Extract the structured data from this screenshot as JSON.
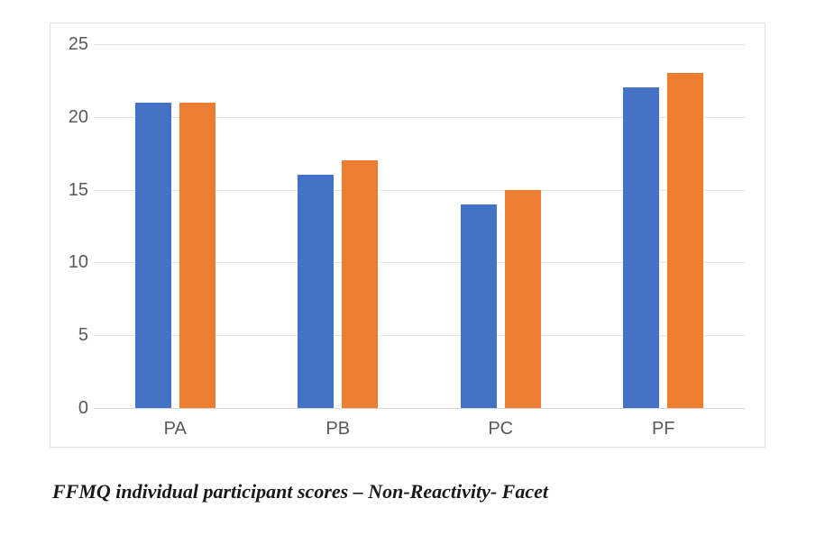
{
  "caption": "FFMQ individual participant scores – Non-Reactivity- Facet",
  "chart_data": {
    "type": "bar",
    "categories": [
      "PA",
      "PB",
      "PC",
      "PF"
    ],
    "series": [
      {
        "name": "blue-series",
        "color": "#4472C4",
        "values": [
          21,
          16,
          14,
          22
        ]
      },
      {
        "name": "orange-series",
        "color": "#ED7D31",
        "values": [
          21,
          17,
          15,
          23
        ]
      }
    ],
    "title": "",
    "xlabel": "",
    "ylabel": "",
    "ylim": [
      0,
      25
    ],
    "yticks": [
      0,
      5,
      10,
      15,
      20,
      25
    ],
    "grid": true,
    "legend": "none",
    "colors": {
      "tick_label": "#595959",
      "gridline": "#e4e4e4",
      "axis_line": "#d6d6d6",
      "frame_border": "#e1e1e1",
      "background": "#ffffff"
    }
  }
}
